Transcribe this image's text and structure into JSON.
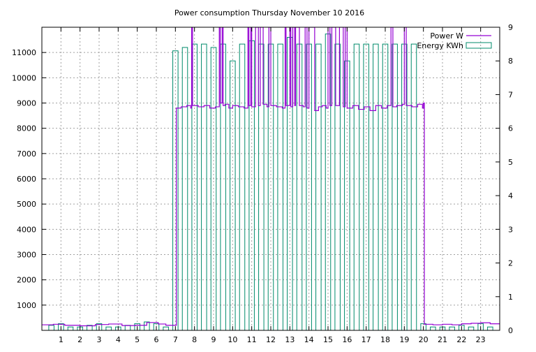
{
  "chart_data": {
    "type": "line",
    "title": "Power consumption Thursday November 10 2016",
    "xlabel": "",
    "ylabel": "",
    "y2label": "",
    "xlim": [
      0,
      24
    ],
    "ylim": [
      0,
      12000
    ],
    "y2lim": [
      0,
      9
    ],
    "x_ticks": [
      1,
      2,
      3,
      4,
      5,
      6,
      7,
      8,
      9,
      10,
      11,
      12,
      13,
      14,
      15,
      16,
      17,
      18,
      19,
      20,
      21,
      22,
      23
    ],
    "y_ticks": [
      1000,
      2000,
      3000,
      4000,
      5000,
      6000,
      7000,
      8000,
      9000,
      10000,
      11000
    ],
    "y2_ticks": [
      0,
      1,
      2,
      3,
      4,
      5,
      6,
      7,
      8,
      9
    ],
    "grid": true,
    "legend_position": "top-right",
    "series": [
      {
        "name": "Power W",
        "axis": "y",
        "color": "#9400d3",
        "style": "step-line",
        "x": [
          0,
          0.6,
          1.2,
          2.0,
          2.8,
          3.5,
          4.2,
          4.9,
          5.5,
          6.1,
          6.5,
          7.0,
          7.05,
          7.3,
          7.6,
          7.8,
          7.85,
          7.9,
          8.2,
          8.5,
          8.8,
          9.1,
          9.3,
          9.35,
          9.45,
          9.5,
          9.6,
          9.8,
          10.0,
          10.3,
          10.6,
          10.8,
          10.85,
          10.95,
          11.0,
          11.2,
          11.35,
          11.45,
          11.6,
          11.8,
          11.9,
          12.0,
          12.3,
          12.6,
          12.75,
          12.8,
          13.0,
          13.05,
          13.15,
          13.25,
          13.3,
          13.5,
          13.7,
          13.8,
          13.9,
          14.0,
          14.3,
          14.5,
          14.7,
          14.9,
          15.0,
          15.1,
          15.2,
          15.4,
          15.6,
          15.8,
          15.9,
          16.0,
          16.3,
          16.6,
          16.9,
          17.2,
          17.5,
          17.8,
          18.1,
          18.3,
          18.4,
          18.6,
          18.9,
          19.0,
          19.1,
          19.4,
          19.7,
          19.95,
          20.0,
          20.05,
          20.5,
          21.0,
          21.5,
          22.0,
          22.5,
          23.0,
          23.5,
          24.0
        ],
        "values": [
          220,
          240,
          200,
          180,
          230,
          250,
          190,
          200,
          310,
          250,
          200,
          200,
          8800,
          8850,
          8900,
          8800,
          12000,
          8900,
          8850,
          8900,
          8800,
          8850,
          12000,
          9000,
          12000,
          8900,
          8950,
          8800,
          8900,
          8850,
          8800,
          12000,
          8900,
          12000,
          8850,
          12000,
          8900,
          12000,
          8950,
          8850,
          12000,
          8900,
          8850,
          8800,
          12000,
          8900,
          12000,
          8850,
          12000,
          8900,
          12000,
          8900,
          8850,
          12000,
          8800,
          12000,
          8700,
          8850,
          8900,
          8800,
          12000,
          8900,
          12000,
          8900,
          12000,
          8850,
          12000,
          8800,
          8900,
          8750,
          8850,
          8700,
          8900,
          8800,
          8900,
          12000,
          8850,
          8900,
          8950,
          12000,
          8900,
          8850,
          8950,
          8800,
          9000,
          240,
          220,
          240,
          220,
          260,
          280,
          300,
          260,
          240
        ]
      },
      {
        "name": "Energy KWh",
        "axis": "y2",
        "color": "#008b6b",
        "style": "boxes",
        "x": [
          0.5,
          1.0,
          1.5,
          2.0,
          2.5,
          3.0,
          3.5,
          4.0,
          4.5,
          5.0,
          5.5,
          6.0,
          6.5,
          7.0,
          7.5,
          8.0,
          8.5,
          9.0,
          9.5,
          10.0,
          10.5,
          11.0,
          11.5,
          12.0,
          12.5,
          13.0,
          13.5,
          14.0,
          14.5,
          15.0,
          15.5,
          16.0,
          16.5,
          17.0,
          17.5,
          18.0,
          18.5,
          19.0,
          19.5,
          20.0,
          20.5,
          21.0,
          21.5,
          22.0,
          22.5,
          23.0,
          23.5
        ],
        "values": [
          0.15,
          0.2,
          0.1,
          0.1,
          0.15,
          0.2,
          0.1,
          0.1,
          0.15,
          0.2,
          0.25,
          0.2,
          0.1,
          8.3,
          8.4,
          8.5,
          8.5,
          8.4,
          8.5,
          8.0,
          8.5,
          8.6,
          8.5,
          8.5,
          8.5,
          8.7,
          8.5,
          8.5,
          8.5,
          8.8,
          8.5,
          8.0,
          8.5,
          8.5,
          8.5,
          8.5,
          8.5,
          8.5,
          8.5,
          0.2,
          0.1,
          0.1,
          0.1,
          0.15,
          0.1,
          0.2,
          0.1
        ]
      }
    ]
  }
}
